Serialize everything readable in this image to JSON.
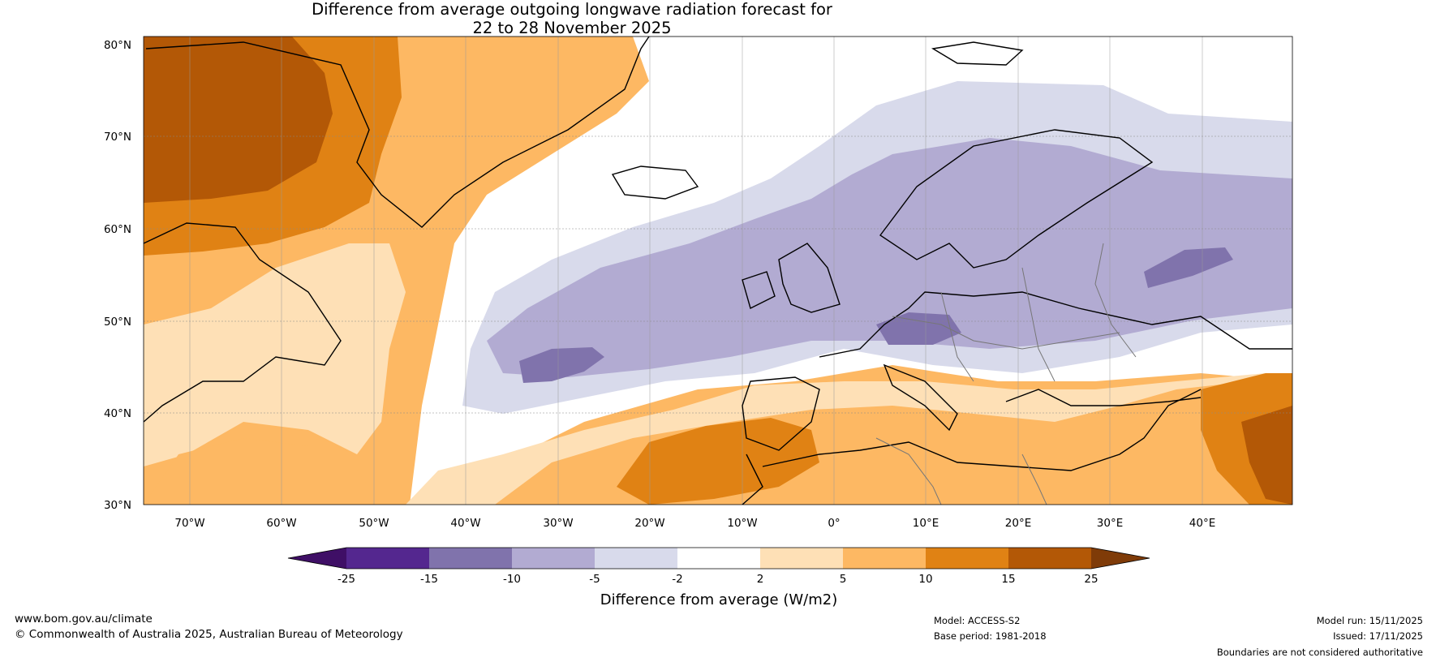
{
  "title": {
    "line1": "Difference from average outgoing longwave radiation forecast for",
    "line2": "22 to 28 November 2025"
  },
  "map": {
    "lat_ticks": [
      "30°N",
      "40°N",
      "50°N",
      "60°N",
      "70°N",
      "80°N"
    ],
    "lon_ticks": [
      "70°W",
      "60°W",
      "50°W",
      "40°W",
      "30°W",
      "20°W",
      "10°W",
      "0°",
      "10°E",
      "20°E",
      "30°E",
      "40°E"
    ]
  },
  "legend": {
    "ticks": [
      "-25",
      "-15",
      "-10",
      "-5",
      "-2",
      "2",
      "5",
      "10",
      "15",
      "25"
    ],
    "colors": [
      "#3f0f66",
      "#54278f",
      "#8073ac",
      "#b2abd2",
      "#d8daeb",
      "#ffffff",
      "#fee0b6",
      "#fdb863",
      "#e08214",
      "#b35806",
      "#7f3b08"
    ],
    "label": "Difference from average (W/m2)"
  },
  "footer": {
    "website": "www.bom.gov.au/climate",
    "copyright": "© Commonwealth of Australia 2025, Australian Bureau of Meteorology",
    "model": "Model: ACCESS-S2",
    "base_period": "Base period: 1981-2018",
    "model_run": "Model run: 15/11/2025",
    "issued": "Issued: 17/11/2025",
    "disclaimer": "Boundaries are not considered authoritative"
  }
}
